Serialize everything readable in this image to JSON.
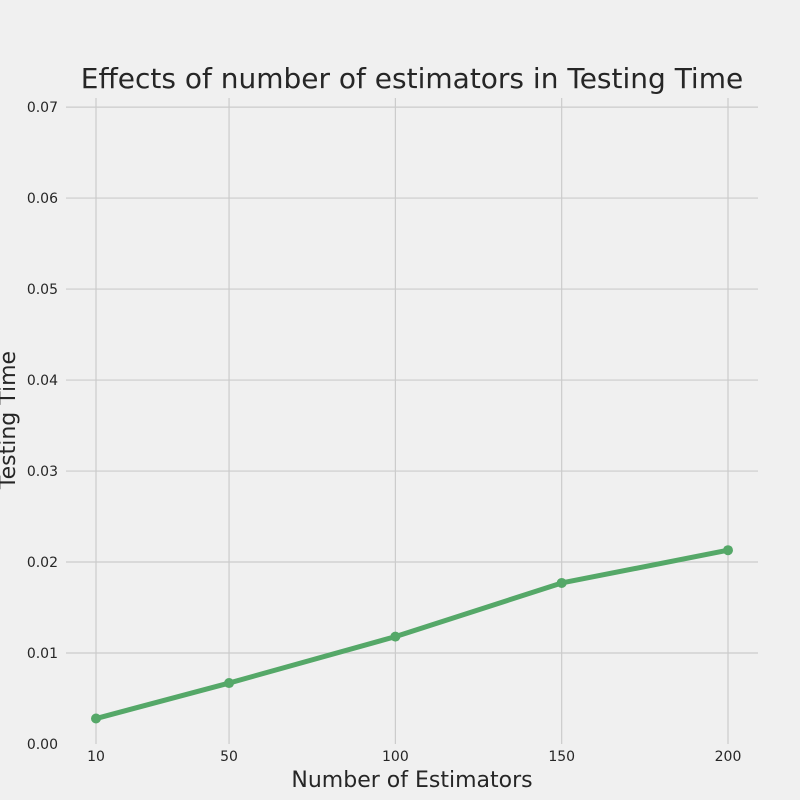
{
  "chart_data": {
    "type": "line",
    "title": "Effects of number of estimators in Testing Time",
    "xlabel": "Number of Estimators",
    "ylabel": "Testing Time",
    "x": [
      10,
      50,
      100,
      150,
      200
    ],
    "xticks": [
      "10",
      "50",
      "100",
      "150",
      "200"
    ],
    "yticks": [
      "0.00",
      "0.01",
      "0.02",
      "0.03",
      "0.04",
      "0.05",
      "0.06",
      "0.07"
    ],
    "ylim": [
      0,
      0.071
    ],
    "grid": true,
    "series": [
      {
        "values": [
          0.0028,
          0.0067,
          0.0118,
          0.0177,
          0.0213
        ],
        "color": "#55a868",
        "marker": "circle"
      }
    ]
  }
}
